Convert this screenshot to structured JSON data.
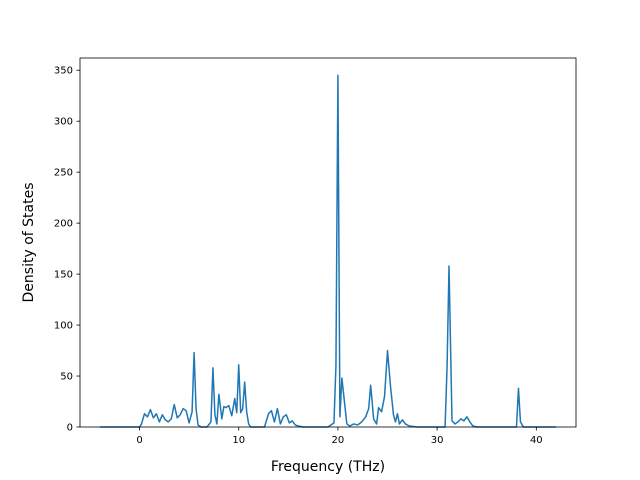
{
  "chart_data": {
    "type": "line",
    "title": "",
    "xlabel": "Frequency (THz)",
    "ylabel": "Density of States",
    "xlim": [
      -6,
      44
    ],
    "ylim": [
      0,
      362
    ],
    "xticks": [
      0,
      10,
      20,
      30,
      40
    ],
    "yticks": [
      0,
      50,
      100,
      150,
      200,
      250,
      300,
      350
    ],
    "grid": false,
    "legend": "none",
    "series": [
      {
        "color": "#1f77b4",
        "x": [
          -4,
          -1,
          0,
          0.2,
          0.5,
          0.8,
          1.1,
          1.4,
          1.7,
          2.0,
          2.3,
          2.6,
          2.9,
          3.2,
          3.5,
          3.8,
          4.1,
          4.4,
          4.7,
          5.0,
          5.3,
          5.5,
          5.7,
          5.9,
          6.2,
          6.8,
          7.2,
          7.4,
          7.6,
          7.8,
          8.0,
          8.3,
          8.5,
          8.7,
          9.0,
          9.3,
          9.6,
          9.8,
          10.0,
          10.2,
          10.4,
          10.6,
          10.8,
          11.0,
          11.2,
          11.5,
          12.0,
          12.6,
          13.0,
          13.3,
          13.6,
          13.9,
          14.2,
          14.5,
          14.8,
          15.1,
          15.4,
          15.7,
          16.0,
          16.5,
          17.5,
          19.0,
          19.6,
          19.8,
          20.0,
          20.2,
          20.4,
          20.6,
          20.9,
          21.2,
          21.6,
          22.0,
          22.4,
          22.8,
          23.1,
          23.3,
          23.6,
          23.9,
          24.1,
          24.4,
          24.7,
          25.0,
          25.3,
          25.6,
          25.8,
          26.0,
          26.2,
          26.5,
          26.8,
          27.2,
          28.0,
          30.0,
          30.8,
          31.0,
          31.2,
          31.5,
          31.8,
          32.1,
          32.4,
          32.7,
          33.0,
          33.3,
          33.6,
          34.0,
          37.5,
          38.0,
          38.2,
          38.4,
          38.7,
          40.0,
          42.0
        ],
        "y": [
          0,
          0,
          0,
          3,
          13,
          10,
          17,
          9,
          13,
          5,
          12,
          7,
          5,
          8,
          22,
          9,
          12,
          18,
          16,
          4,
          15,
          73,
          18,
          2,
          0,
          0,
          5,
          58,
          12,
          3,
          32,
          8,
          20,
          19,
          21,
          11,
          28,
          14,
          61,
          14,
          18,
          44,
          15,
          3,
          0,
          0,
          0,
          0,
          13,
          16,
          5,
          18,
          3,
          10,
          12,
          4,
          6,
          2,
          1,
          0,
          0,
          0,
          4,
          60,
          345,
          10,
          48,
          30,
          3,
          1,
          3,
          2,
          5,
          10,
          18,
          41,
          8,
          3,
          19,
          15,
          30,
          75,
          40,
          12,
          5,
          13,
          3,
          7,
          3,
          1,
          0,
          0,
          0,
          58,
          158,
          6,
          3,
          5,
          8,
          6,
          10,
          5,
          1,
          0,
          0,
          0,
          38,
          5,
          0,
          0,
          0
        ]
      }
    ]
  }
}
